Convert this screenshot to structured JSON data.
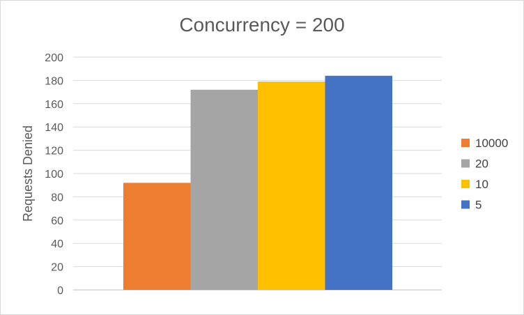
{
  "chart_data": {
    "type": "bar",
    "title": "Concurrency = 200",
    "xlabel": "",
    "ylabel": "Requests Denied",
    "ylim": [
      0,
      200
    ],
    "ytick_step": 20,
    "yticks": [
      "0",
      "20",
      "40",
      "60",
      "80",
      "100",
      "120",
      "140",
      "160",
      "180",
      "200"
    ],
    "categories": [
      ""
    ],
    "grid": true,
    "legend_position": "right",
    "series": [
      {
        "name": "10000",
        "color": "#ED7D31",
        "values": [
          92
        ]
      },
      {
        "name": "20",
        "color": "#A5A5A5",
        "values": [
          172
        ]
      },
      {
        "name": "10",
        "color": "#FFC000",
        "values": [
          179
        ]
      },
      {
        "name": "5",
        "color": "#4472C4",
        "values": [
          184
        ]
      }
    ]
  }
}
